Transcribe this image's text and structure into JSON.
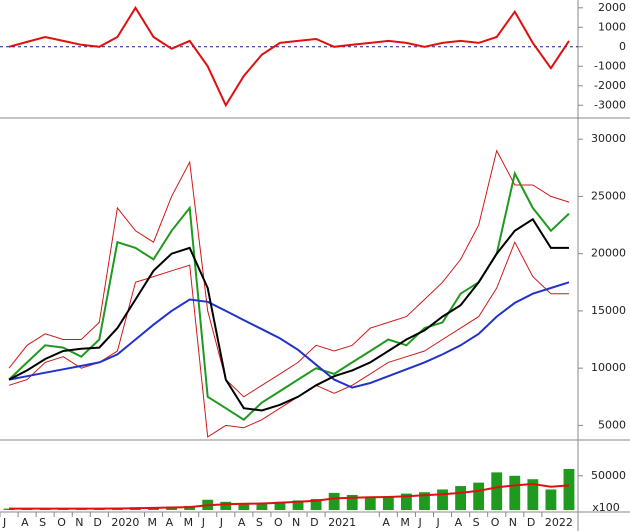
{
  "chart_data": [
    {
      "type": "line",
      "ylim": [
        -3500,
        2400
      ],
      "yticks": [
        -3000,
        -2000,
        -1000,
        0,
        1000,
        2000
      ],
      "reference_lines": [
        0
      ],
      "series": [
        {
          "color": "#e01010",
          "style": "line",
          "values": [
            0,
            250,
            500,
            300,
            100,
            0,
            500,
            2000,
            500,
            -100,
            300,
            -1000,
            -3000,
            -1500,
            -400,
            200,
            300,
            400,
            0,
            100,
            200,
            300,
            200,
            0,
            200,
            300,
            200,
            500,
            1800,
            200,
            -1100,
            300
          ]
        }
      ]
    },
    {
      "type": "line",
      "ylim": [
        3900,
        31500
      ],
      "yticks": [
        5000,
        10000,
        15000,
        20000,
        25000,
        30000
      ],
      "series": [
        {
          "color": "#d01818",
          "style": "line",
          "values": [
            10000,
            12000,
            13000,
            12500,
            12500,
            14000,
            24000,
            22000,
            21000,
            25000,
            28000,
            15000,
            9000,
            7500,
            8500,
            9500,
            10500,
            12000,
            11500,
            12000,
            13500,
            14000,
            14500,
            16000,
            17500,
            19500,
            22500,
            29000,
            26000,
            26000,
            25000,
            24500
          ]
        },
        {
          "color": "#d01818",
          "style": "line",
          "values": [
            8500,
            9000,
            10500,
            11000,
            10000,
            10500,
            11500,
            17500,
            18000,
            18500,
            19000,
            4000,
            5000,
            4800,
            5500,
            6500,
            7500,
            8500,
            7800,
            8500,
            9500,
            10500,
            11000,
            11500,
            12500,
            13500,
            14500,
            17000,
            21000,
            18000,
            16500,
            16500
          ]
        },
        {
          "color": "#1f9a1f",
          "style": "line",
          "values": [
            9000,
            10500,
            12000,
            11800,
            11000,
            12500,
            21000,
            20500,
            19500,
            22000,
            24000,
            7500,
            6500,
            5500,
            7000,
            8000,
            9000,
            10000,
            9500,
            10500,
            11500,
            12500,
            12000,
            13500,
            14000,
            16500,
            17500,
            20000,
            27000,
            24000,
            22000,
            23500
          ]
        },
        {
          "color": "#2233cc",
          "style": "line",
          "values": [
            9000,
            9300,
            9600,
            9900,
            10200,
            10500,
            11200,
            12500,
            13800,
            15000,
            16000,
            15800,
            15000,
            14200,
            13400,
            12600,
            11600,
            10300,
            9000,
            8300,
            8700,
            9300,
            9900,
            10500,
            11200,
            12000,
            13000,
            14500,
            15700,
            16500,
            17000,
            17500
          ]
        },
        {
          "color": "#000000",
          "style": "line",
          "values": [
            9000,
            9800,
            10800,
            11500,
            11700,
            11800,
            13500,
            16000,
            18500,
            20000,
            20500,
            17000,
            9000,
            6500,
            6300,
            6800,
            7500,
            8500,
            9300,
            9800,
            10500,
            11500,
            12500,
            13300,
            14500,
            15500,
            17500,
            20000,
            22000,
            23000,
            20500,
            20500
          ]
        }
      ]
    },
    {
      "type": "bar",
      "ylim": [
        0,
        95000
      ],
      "yticks": [
        50000
      ],
      "unit_label": "x100",
      "categories": [
        "J",
        "A",
        "S",
        "O",
        "N",
        "D",
        "2020",
        null,
        "M",
        "A",
        "M",
        "J",
        "J",
        "A",
        "S",
        "O",
        "N",
        "D",
        "2021",
        null,
        null,
        "A",
        "M",
        "J",
        "J",
        "A",
        "S",
        "O",
        "N",
        "D",
        "2022",
        null
      ],
      "series": [
        {
          "color": "#1f9a1f",
          "style": "bar",
          "values": [
            2000,
            2000,
            2000,
            2000,
            2000,
            2000,
            3000,
            4000,
            4000,
            5000,
            6000,
            15000,
            12000,
            8000,
            10000,
            12000,
            14000,
            16000,
            25000,
            22000,
            18000,
            20000,
            24000,
            26000,
            30000,
            35000,
            40000,
            55000,
            50000,
            45000,
            30000,
            60000
          ]
        },
        {
          "color": "#e01010",
          "style": "line",
          "values": [
            2000,
            2000,
            2000,
            2000,
            2000,
            2000,
            2200,
            2600,
            3000,
            3600,
            4200,
            7000,
            8500,
            9000,
            9500,
            10500,
            12000,
            13500,
            17000,
            18000,
            18500,
            19000,
            20000,
            21500,
            23000,
            25000,
            28000,
            33000,
            36000,
            38000,
            34000,
            36000
          ]
        }
      ]
    }
  ]
}
